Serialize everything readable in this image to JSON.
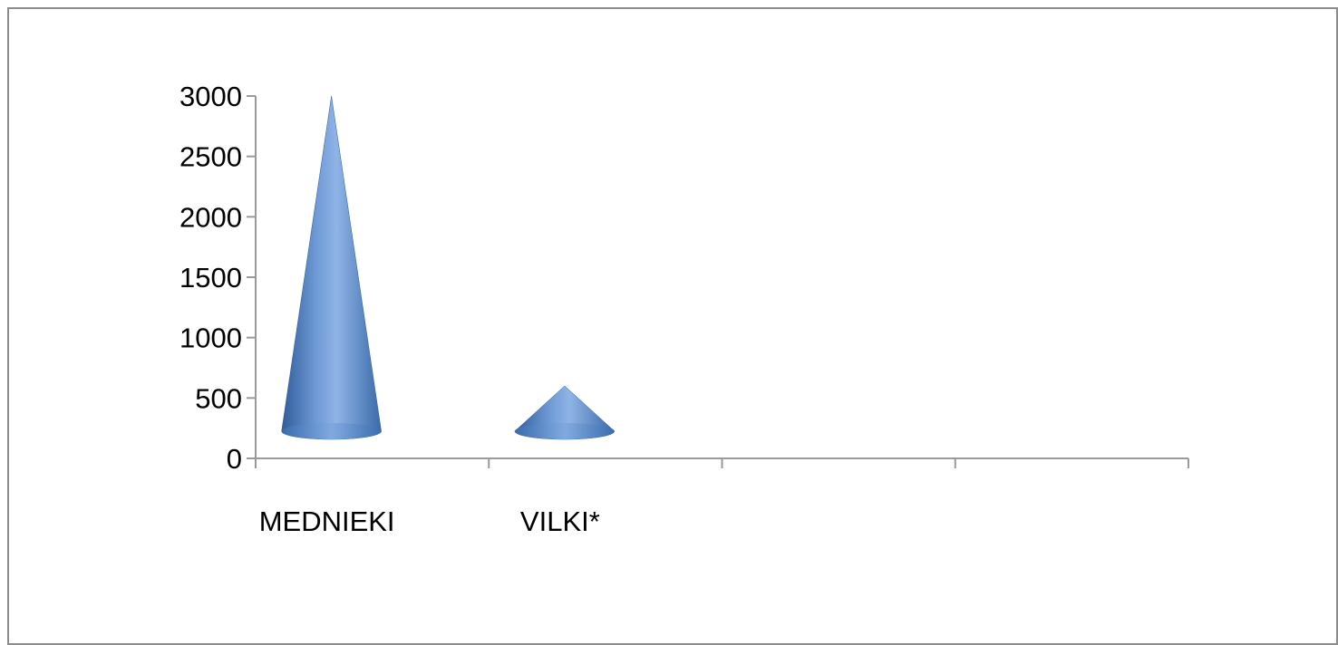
{
  "chart_data": {
    "type": "bar",
    "bar_shape": "cone",
    "categories": [
      "MEDNIEKI",
      "VILKI*",
      "",
      ""
    ],
    "values": [
      3000,
      600,
      null,
      null
    ],
    "ylim": [
      0,
      3000
    ],
    "yticks": [
      0,
      500,
      1000,
      1500,
      2000,
      2500,
      3000
    ],
    "ytick_labels": [
      "0",
      "500",
      "1000",
      "1500",
      "2000",
      "2500",
      "3000"
    ],
    "grid": false,
    "legend": "none",
    "colors": {
      "bar_light": "#8fb4e6",
      "bar_mid": "#4f81bd",
      "bar_dark": "#2f5d9a",
      "axis": "#9a9a9a",
      "frame": "#8c8c8c"
    }
  }
}
